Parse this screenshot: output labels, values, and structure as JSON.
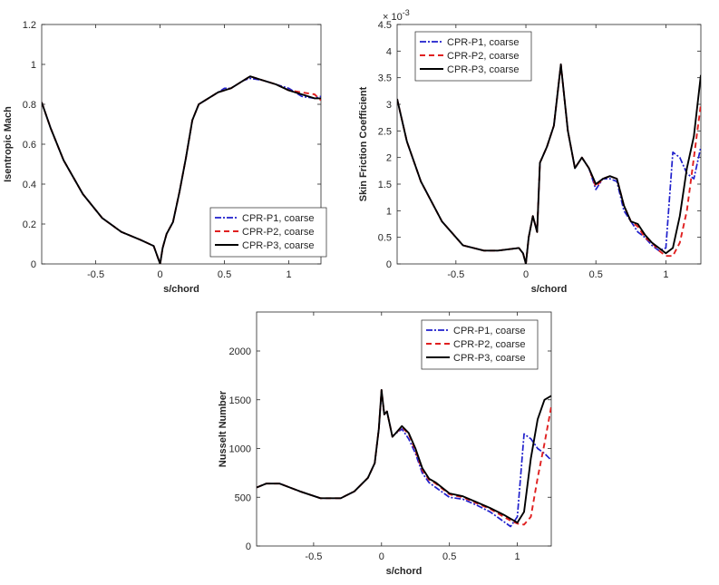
{
  "chart_data": [
    {
      "id": "mach",
      "type": "line",
      "xlabel": "s/chord",
      "ylabel": "Isentropic Mach",
      "xlim": [
        -0.92,
        1.25
      ],
      "ylim": [
        0,
        1.2
      ],
      "xticks": [
        -0.5,
        0,
        0.5,
        1
      ],
      "xtick_labels": [
        "-0.5",
        "0",
        "0.5",
        "1"
      ],
      "yticks": [
        0,
        0.2,
        0.4,
        0.6,
        0.8,
        1,
        1.2
      ],
      "ytick_labels": [
        "0",
        "0.2",
        "0.4",
        "0.6",
        "0.8",
        "1",
        "1.2"
      ],
      "exponent_label": "",
      "legend_position": "lower-right",
      "series": [
        {
          "name": "CPR-P1, coarse",
          "x": [
            -0.92,
            -0.85,
            -0.75,
            -0.6,
            -0.45,
            -0.3,
            -0.15,
            -0.05,
            0,
            0.02,
            0.05,
            0.1,
            0.15,
            0.2,
            0.25,
            0.3,
            0.35,
            0.4,
            0.45,
            0.5,
            0.55,
            0.6,
            0.65,
            0.7,
            0.8,
            0.9,
            1.0,
            1.1,
            1.2,
            1.25
          ],
          "y": [
            0.81,
            0.68,
            0.52,
            0.35,
            0.23,
            0.16,
            0.12,
            0.09,
            0,
            0.08,
            0.15,
            0.21,
            0.36,
            0.53,
            0.72,
            0.8,
            0.82,
            0.84,
            0.86,
            0.88,
            0.88,
            0.9,
            0.92,
            0.93,
            0.92,
            0.9,
            0.88,
            0.84,
            0.83,
            0.84
          ]
        },
        {
          "name": "CPR-P2, coarse",
          "x": [
            -0.92,
            -0.85,
            -0.75,
            -0.6,
            -0.45,
            -0.3,
            -0.15,
            -0.05,
            0,
            0.02,
            0.05,
            0.1,
            0.15,
            0.2,
            0.25,
            0.3,
            0.35,
            0.4,
            0.45,
            0.5,
            0.55,
            0.6,
            0.65,
            0.7,
            0.8,
            0.9,
            1.0,
            1.1,
            1.2,
            1.25
          ],
          "y": [
            0.81,
            0.68,
            0.52,
            0.35,
            0.23,
            0.16,
            0.12,
            0.09,
            0,
            0.08,
            0.15,
            0.21,
            0.36,
            0.53,
            0.72,
            0.8,
            0.82,
            0.84,
            0.86,
            0.87,
            0.88,
            0.9,
            0.92,
            0.94,
            0.92,
            0.9,
            0.87,
            0.86,
            0.85,
            0.82
          ]
        },
        {
          "name": "CPR-P3, coarse",
          "x": [
            -0.92,
            -0.85,
            -0.75,
            -0.6,
            -0.45,
            -0.3,
            -0.15,
            -0.05,
            0,
            0.02,
            0.05,
            0.1,
            0.15,
            0.2,
            0.25,
            0.3,
            0.35,
            0.4,
            0.45,
            0.5,
            0.55,
            0.6,
            0.65,
            0.7,
            0.8,
            0.9,
            1.0,
            1.1,
            1.2,
            1.25
          ],
          "y": [
            0.81,
            0.68,
            0.52,
            0.35,
            0.23,
            0.16,
            0.12,
            0.09,
            0,
            0.08,
            0.15,
            0.21,
            0.36,
            0.53,
            0.72,
            0.8,
            0.82,
            0.84,
            0.86,
            0.87,
            0.88,
            0.9,
            0.92,
            0.94,
            0.92,
            0.9,
            0.87,
            0.85,
            0.83,
            0.83
          ]
        }
      ]
    },
    {
      "id": "cf",
      "type": "line",
      "xlabel": "s/chord",
      "ylabel": "Skin Friction Coefficient",
      "xlim": [
        -0.92,
        1.25
      ],
      "ylim": [
        0,
        4.5
      ],
      "xticks": [
        -0.5,
        0,
        0.5,
        1
      ],
      "xtick_labels": [
        "-0.5",
        "0",
        "0.5",
        "1"
      ],
      "yticks": [
        0,
        0.5,
        1,
        1.5,
        2,
        2.5,
        3,
        3.5,
        4,
        4.5
      ],
      "ytick_labels": [
        "0",
        "0.5",
        "1",
        "1.5",
        "2",
        "2.5",
        "3",
        "3.5",
        "4",
        "4.5"
      ],
      "exponent_label": "× 10",
      "exponent_power": "-3",
      "legend_position": "top-left",
      "series": [
        {
          "name": "CPR-P1, coarse",
          "x": [
            -0.92,
            -0.85,
            -0.75,
            -0.6,
            -0.45,
            -0.3,
            -0.2,
            -0.05,
            -0.02,
            0,
            0.02,
            0.05,
            0.08,
            0.1,
            0.15,
            0.2,
            0.25,
            0.3,
            0.35,
            0.4,
            0.45,
            0.5,
            0.55,
            0.6,
            0.65,
            0.7,
            0.75,
            0.8,
            0.85,
            0.9,
            0.95,
            1.0,
            1.05,
            1.1,
            1.15,
            1.2,
            1.25
          ],
          "y": [
            3.1,
            2.3,
            1.55,
            0.8,
            0.35,
            0.25,
            0.25,
            0.3,
            0.2,
            0,
            0.5,
            0.9,
            0.6,
            1.9,
            2.2,
            2.6,
            3.75,
            2.5,
            1.8,
            2.0,
            1.8,
            1.4,
            1.6,
            1.6,
            1.55,
            1.0,
            0.8,
            0.6,
            0.5,
            0.35,
            0.25,
            0.3,
            2.1,
            2.0,
            1.7,
            1.6,
            2.2
          ]
        },
        {
          "name": "CPR-P2, coarse",
          "x": [
            -0.92,
            -0.85,
            -0.75,
            -0.6,
            -0.45,
            -0.3,
            -0.2,
            -0.05,
            -0.02,
            0,
            0.02,
            0.05,
            0.08,
            0.1,
            0.15,
            0.2,
            0.25,
            0.3,
            0.35,
            0.4,
            0.45,
            0.5,
            0.55,
            0.6,
            0.65,
            0.7,
            0.75,
            0.8,
            0.85,
            0.9,
            0.95,
            1.0,
            1.05,
            1.1,
            1.15,
            1.2,
            1.25
          ],
          "y": [
            3.1,
            2.3,
            1.55,
            0.8,
            0.35,
            0.25,
            0.25,
            0.3,
            0.2,
            0,
            0.5,
            0.9,
            0.6,
            1.9,
            2.2,
            2.6,
            3.75,
            2.5,
            1.8,
            2.0,
            1.8,
            1.45,
            1.6,
            1.65,
            1.6,
            1.1,
            0.8,
            0.7,
            0.5,
            0.4,
            0.25,
            0.15,
            0.15,
            0.4,
            1.0,
            2.0,
            3.0
          ]
        },
        {
          "name": "CPR-P3, coarse",
          "x": [
            -0.92,
            -0.85,
            -0.75,
            -0.6,
            -0.45,
            -0.3,
            -0.2,
            -0.05,
            -0.02,
            0,
            0.02,
            0.05,
            0.08,
            0.1,
            0.15,
            0.2,
            0.25,
            0.3,
            0.35,
            0.4,
            0.45,
            0.5,
            0.55,
            0.6,
            0.65,
            0.7,
            0.75,
            0.8,
            0.85,
            0.9,
            0.95,
            1.0,
            1.05,
            1.1,
            1.15,
            1.2,
            1.25
          ],
          "y": [
            3.1,
            2.3,
            1.55,
            0.8,
            0.35,
            0.25,
            0.25,
            0.3,
            0.2,
            0,
            0.5,
            0.9,
            0.6,
            1.9,
            2.2,
            2.6,
            3.75,
            2.5,
            1.8,
            2.0,
            1.8,
            1.5,
            1.6,
            1.65,
            1.6,
            1.1,
            0.8,
            0.75,
            0.55,
            0.4,
            0.3,
            0.2,
            0.3,
            0.9,
            1.8,
            2.4,
            3.55
          ]
        }
      ]
    },
    {
      "id": "nu",
      "type": "line",
      "xlabel": "s/chord",
      "ylabel": "Nusselt Number",
      "xlim": [
        -0.92,
        1.25
      ],
      "ylim": [
        0,
        2400
      ],
      "xticks": [
        -0.5,
        0,
        0.5,
        1
      ],
      "xtick_labels": [
        "-0.5",
        "0",
        "0.5",
        "1"
      ],
      "yticks": [
        0,
        500,
        1000,
        1500,
        2000
      ],
      "ytick_labels": [
        "0",
        "500",
        "1000",
        "1500",
        "2000"
      ],
      "exponent_label": "",
      "legend_position": "top-right",
      "series": [
        {
          "name": "CPR-P1, coarse",
          "x": [
            -0.92,
            -0.85,
            -0.75,
            -0.6,
            -0.45,
            -0.3,
            -0.2,
            -0.1,
            -0.05,
            -0.02,
            0,
            0.02,
            0.04,
            0.06,
            0.08,
            0.1,
            0.15,
            0.2,
            0.25,
            0.3,
            0.35,
            0.4,
            0.5,
            0.6,
            0.7,
            0.8,
            0.9,
            0.95,
            1.0,
            1.05,
            1.1,
            1.15,
            1.2,
            1.25
          ],
          "y": [
            600,
            640,
            640,
            560,
            490,
            490,
            560,
            700,
            850,
            1200,
            1580,
            1350,
            1380,
            1250,
            1120,
            1150,
            1200,
            1100,
            950,
            750,
            650,
            600,
            500,
            480,
            420,
            350,
            250,
            200,
            300,
            1150,
            1100,
            1000,
            950,
            880
          ]
        },
        {
          "name": "CPR-P2, coarse",
          "x": [
            -0.92,
            -0.85,
            -0.75,
            -0.6,
            -0.45,
            -0.3,
            -0.2,
            -0.1,
            -0.05,
            -0.02,
            0,
            0.02,
            0.04,
            0.06,
            0.08,
            0.1,
            0.15,
            0.2,
            0.25,
            0.3,
            0.35,
            0.4,
            0.5,
            0.6,
            0.7,
            0.8,
            0.9,
            0.95,
            1.0,
            1.05,
            1.1,
            1.15,
            1.2,
            1.25
          ],
          "y": [
            600,
            640,
            640,
            560,
            490,
            490,
            560,
            700,
            850,
            1200,
            1600,
            1350,
            1380,
            1250,
            1120,
            1150,
            1220,
            1150,
            980,
            780,
            680,
            640,
            530,
            500,
            440,
            380,
            300,
            260,
            230,
            220,
            300,
            700,
            1050,
            1430
          ]
        },
        {
          "name": "CPR-P3, coarse",
          "x": [
            -0.92,
            -0.85,
            -0.75,
            -0.6,
            -0.45,
            -0.3,
            -0.2,
            -0.1,
            -0.05,
            -0.02,
            0,
            0.02,
            0.04,
            0.06,
            0.08,
            0.1,
            0.15,
            0.2,
            0.25,
            0.3,
            0.35,
            0.4,
            0.5,
            0.6,
            0.7,
            0.8,
            0.9,
            0.95,
            1.0,
            1.05,
            1.1,
            1.15,
            1.2,
            1.25
          ],
          "y": [
            600,
            640,
            640,
            560,
            490,
            490,
            560,
            700,
            850,
            1200,
            1600,
            1350,
            1380,
            1250,
            1120,
            1150,
            1230,
            1160,
            1000,
            800,
            690,
            650,
            540,
            510,
            450,
            390,
            320,
            280,
            240,
            350,
            900,
            1300,
            1500,
            1540
          ]
        }
      ]
    }
  ],
  "series_styles": [
    {
      "color": "#1f1fcc",
      "dash": "7,2,2,2",
      "width": 1.7
    },
    {
      "color": "#e02020",
      "dash": "6,4",
      "width": 1.9
    },
    {
      "color": "#000000",
      "dash": "",
      "width": 1.9
    }
  ]
}
